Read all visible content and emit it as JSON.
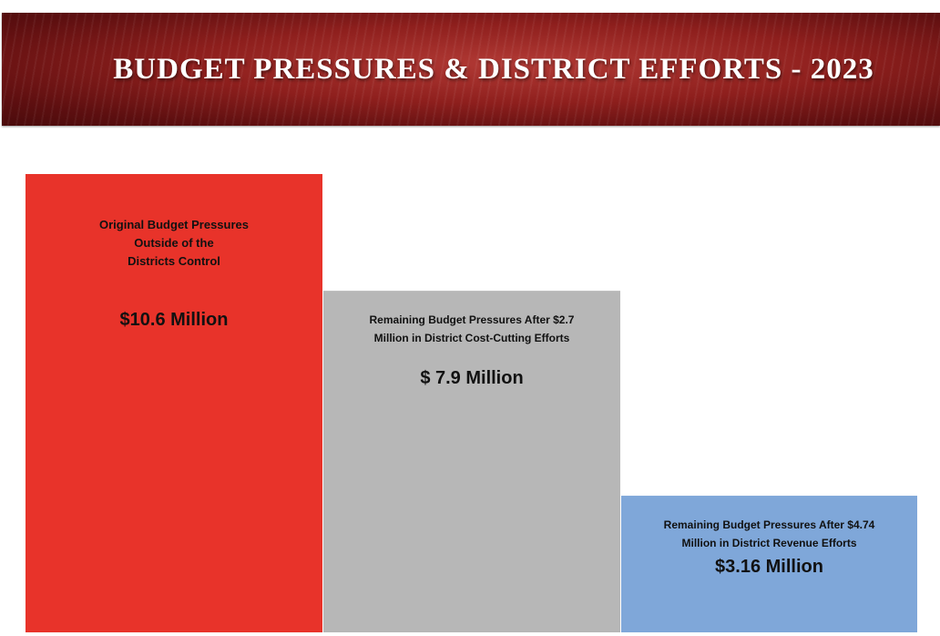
{
  "banner": {
    "title": "BUDGET PRESSURES & DISTRICT EFFORTS - 2023"
  },
  "chart_data": {
    "type": "bar",
    "title": "BUDGET PRESSURES & DISTRICT EFFORTS - 2023",
    "unit": "Million",
    "ylim": [
      0,
      10.6
    ],
    "colors": [
      "#e8332a",
      "#b7b7b7",
      "#7fa7d9"
    ],
    "bars": [
      {
        "description": [
          "Original Budget Pressures",
          "Outside of the",
          "Districts Control"
        ],
        "value_label": "$10.6 Million",
        "value": 10.6
      },
      {
        "description": [
          "Remaining Budget Pressures After $2.7",
          "Million in District Cost-Cutting Efforts"
        ],
        "value_label": "$ 7.9 Million",
        "value": 7.9
      },
      {
        "description": [
          "Remaining Budget Pressures After $4.74",
          "Million in District Revenue Efforts"
        ],
        "value_label": "$3.16 Million",
        "value": 3.16
      }
    ]
  }
}
